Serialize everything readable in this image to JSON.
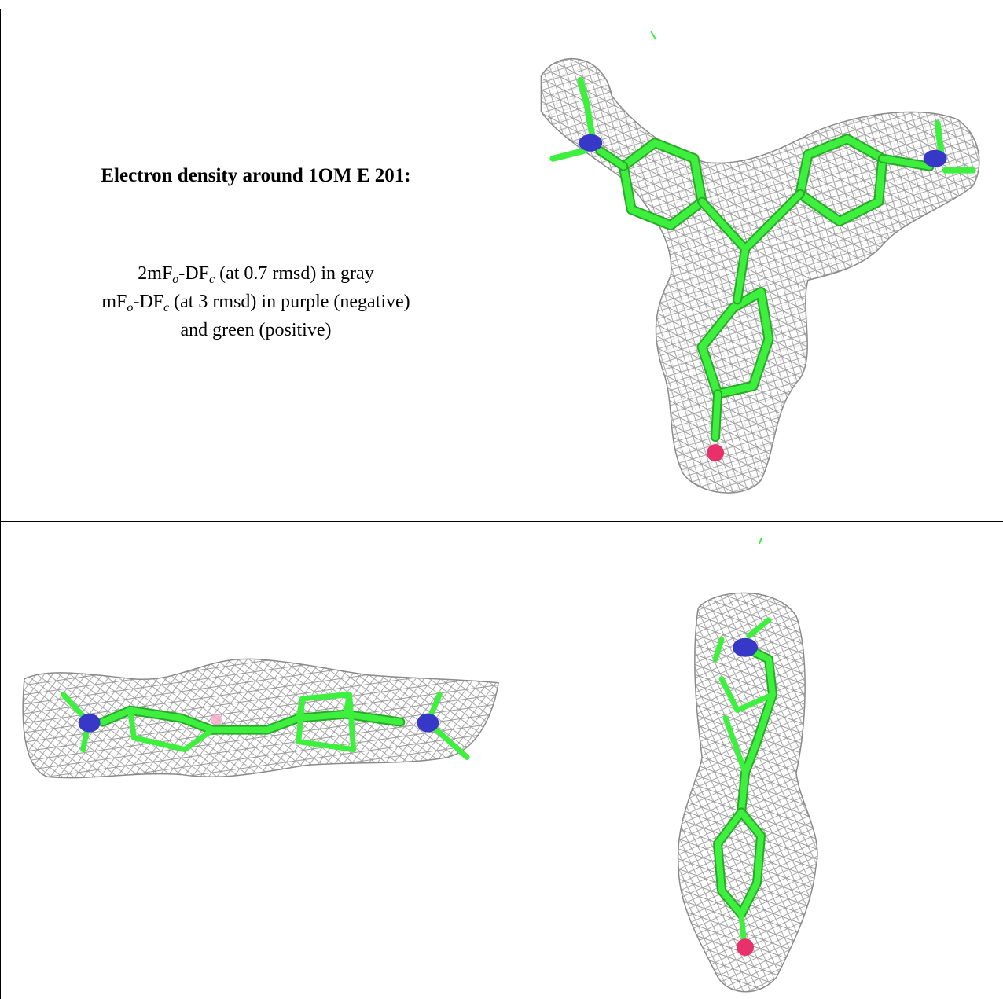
{
  "caption": {
    "title": "Electron density around 1OM E 201:",
    "line1": {
      "a": "2mF",
      "s1": "o",
      "b": "-DF",
      "s2": "c",
      "c": " (at 0.7 rmsd) in gray"
    },
    "line2": {
      "a": "mF",
      "s1": "o",
      "b": "-DF",
      "s2": "c",
      "c": " (at 3 rmsd) in purple (negative)"
    },
    "line3": "and green (positive)"
  },
  "colors": {
    "mesh": "#9a9a9a",
    "carbon": "#3ef03e",
    "nitrogen": "#3838c8",
    "oxygen": "#e8306a",
    "border": "#000000"
  },
  "views": [
    {
      "name": "top-view",
      "atoms": "carbon, nitrogen, oxygen"
    },
    {
      "name": "side-view",
      "atoms": "carbon, nitrogen"
    },
    {
      "name": "end-view",
      "atoms": "carbon, nitrogen, oxygen"
    }
  ]
}
